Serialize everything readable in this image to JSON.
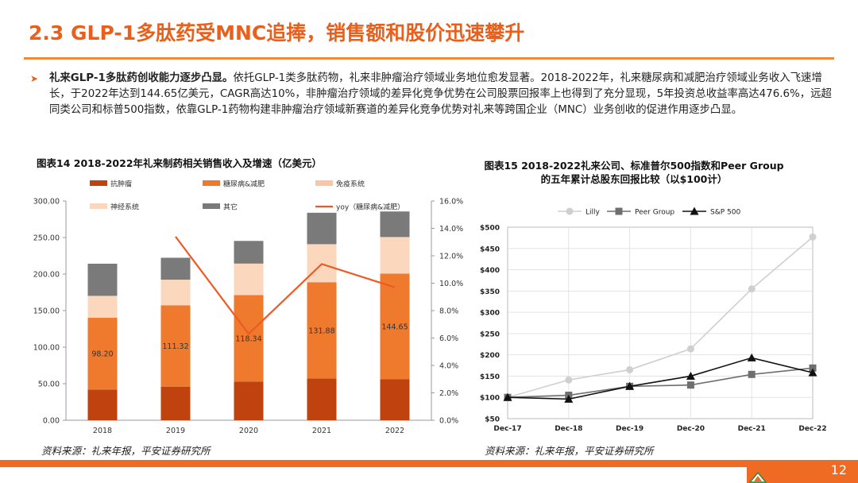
{
  "header": {
    "title": "2.3 GLP-1多肽药受MNC追捧，销售额和股价迅速攀升"
  },
  "bullet": {
    "lead": "礼来GLP-1多肽药创收能力逐步凸显。",
    "body": "依托GLP-1类多肽药物，礼来非肿瘤治疗领域业务地位愈发显著。2018-2022年，礼来糖尿病和减肥治疗领域业务收入飞速增长，于2022年达到144.65亿美元，CAGR高达10%，非肿瘤治疗领域的差异化竞争优势在公司股票回报率上也得到了充分显现，5年投资总收益率高达476.6%，远超同类公司和标普500指数，依靠GLP-1药物构建非肿瘤治疗领域新赛道的差异化竞争优势对礼来等跨国企业（MNC）业务创收的促进作用逐步凸显。"
  },
  "chart_data": [
    {
      "type": "bar",
      "title": "图表14 2018-2022年礼来制药相关销售收入及增速（亿美元）",
      "stacked": true,
      "categories": [
        "2018",
        "2019",
        "2020",
        "2021",
        "2022"
      ],
      "series": [
        {
          "name": "抗肿瘤",
          "color": "#c0420e",
          "values": [
            42,
            46,
            53,
            57,
            56
          ]
        },
        {
          "name": "糖尿病&减肥",
          "color": "#ef7a2e",
          "values": [
            98.2,
            111.32,
            118.34,
            131.88,
            144.65
          ],
          "labels": [
            "98.20",
            "111.32",
            "118.34",
            "131.88",
            "144.65"
          ]
        },
        {
          "name": "免疫系统",
          "color": "#f9c7a6",
          "values": [
            0,
            0,
            0,
            0,
            0
          ]
        },
        {
          "name": "神经系统",
          "color": "#fbd8bd",
          "values": [
            30,
            35,
            43,
            52,
            50
          ]
        },
        {
          "name": "其它",
          "color": "#7a7a7a",
          "values": [
            44,
            30,
            31,
            43,
            35
          ]
        }
      ],
      "line": {
        "name": "yoy（糖尿病&减肥）",
        "color": "#ee5a24",
        "values": [
          null,
          13.4,
          6.3,
          11.4,
          9.7
        ]
      },
      "ylim": [
        0,
        300
      ],
      "yticks": [
        "0.00",
        "50.00",
        "100.00",
        "150.00",
        "200.00",
        "250.00",
        "300.00"
      ],
      "y2lim": [
        0,
        16
      ],
      "y2ticks": [
        "0.0%",
        "2.0%",
        "4.0%",
        "6.0%",
        "8.0%",
        "10.0%",
        "12.0%",
        "14.0%",
        "16.0%"
      ],
      "legend": "top",
      "grid": false
    },
    {
      "type": "line",
      "title_line1": "图表15 2018-2022礼来公司、标准普尔500指数和Peer Group",
      "title_line2": "的五年累计总股东回报比较（以$100计）",
      "x": [
        "Dec-17",
        "Dec-18",
        "Dec-19",
        "Dec-20",
        "Dec-21",
        "Dec-22"
      ],
      "series": [
        {
          "name": "Lilly",
          "color": "#cfcfcf",
          "marker": "circle",
          "values": [
            100,
            141,
            165,
            214,
            355,
            477
          ]
        },
        {
          "name": "Peer Group",
          "color": "#6e6e6e",
          "marker": "square",
          "values": [
            100,
            105,
            126,
            129,
            154,
            169
          ]
        },
        {
          "name": "S&P 500",
          "color": "#111111",
          "marker": "triangle",
          "values": [
            100,
            96,
            126,
            150,
            193,
            158
          ]
        }
      ],
      "ylim": [
        50,
        500
      ],
      "yticks": [
        "$50",
        "$100",
        "$150",
        "$200",
        "$250",
        "$300",
        "$350",
        "$400",
        "$450",
        "$500"
      ],
      "legend": "top",
      "grid": true
    }
  ],
  "sources": {
    "left": "资料来源：礼来年报，平安证券研究所",
    "right": "资料来源：礼来年报，平安证券研究所"
  },
  "footer": {
    "page": "12",
    "accent": "#ef6a22"
  }
}
